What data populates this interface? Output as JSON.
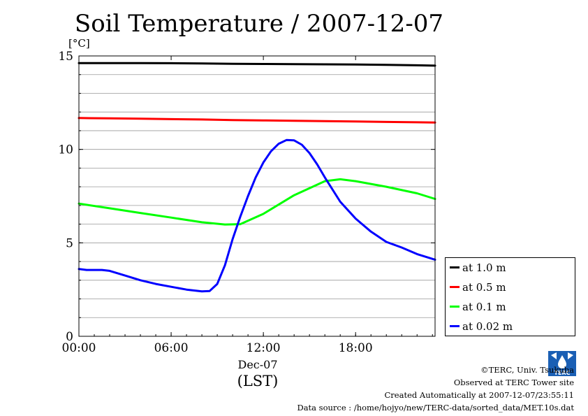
{
  "title": "Soil Temperature / 2007-12-07",
  "colors": {
    "d1_0": "#000000",
    "d0_5": "#ff0000",
    "d0_1": "#00ff00",
    "d0_02": "#0000ff"
  },
  "legend": [
    {
      "label": "at 1.0 m",
      "color": "#000000"
    },
    {
      "label": "at 0.5 m",
      "color": "#ff0000"
    },
    {
      "label": "at 0.1 m",
      "color": "#00ff00"
    },
    {
      "label": "at 0.02 m",
      "color": "#0000ff"
    }
  ],
  "credits": {
    "copyright": "©TERC, Univ. Tsukuba",
    "observed": "Observed at TERC Tower site",
    "created": "Created Automatically at 2007-12-07/23:55:11",
    "source": "Data source : /home/hojyo/new/TERC-data/sorted_data/MET.10s.dat"
  },
  "logo_text": "TERC",
  "chart_data": {
    "type": "line",
    "title": "Soil Temperature / 2007-12-07",
    "ylabel": "[°C]",
    "xlabel": "(LST)",
    "x_date_label": "Dec-07",
    "xlim": [
      0,
      23.17
    ],
    "ylim": [
      0,
      15
    ],
    "x_ticks": [
      0,
      6,
      12,
      18
    ],
    "x_tick_labels": [
      "00:00",
      "06:00",
      "12:00",
      "18:00"
    ],
    "y_ticks": [
      0,
      5,
      10,
      15
    ],
    "y_tick_labels": [
      "0",
      "5",
      "10",
      "15"
    ],
    "grid": true,
    "legend_position": "right-bottom, outside plot",
    "series": [
      {
        "name": "at 1.0 m",
        "color": "#000000",
        "x": [
          0,
          2,
          4,
          6,
          8,
          10,
          12,
          14,
          16,
          18,
          20,
          22,
          23.17
        ],
        "y": [
          14.62,
          14.62,
          14.62,
          14.61,
          14.6,
          14.58,
          14.57,
          14.56,
          14.55,
          14.54,
          14.52,
          14.5,
          14.48
        ]
      },
      {
        "name": "at 0.5 m",
        "color": "#ff0000",
        "x": [
          0,
          2,
          4,
          6,
          8,
          10,
          12,
          14,
          16,
          18,
          20,
          22,
          23.17
        ],
        "y": [
          11.68,
          11.66,
          11.64,
          11.62,
          11.6,
          11.57,
          11.55,
          11.53,
          11.51,
          11.49,
          11.47,
          11.45,
          11.44
        ]
      },
      {
        "name": "at 0.1 m",
        "color": "#00ff00",
        "x": [
          0,
          2,
          4,
          6,
          8,
          9.5,
          10.5,
          12,
          14,
          16,
          17,
          18,
          20,
          22,
          23.17
        ],
        "y": [
          7.1,
          6.85,
          6.6,
          6.35,
          6.1,
          5.98,
          6.0,
          6.55,
          7.55,
          8.3,
          8.4,
          8.3,
          8.0,
          7.65,
          7.35
        ]
      },
      {
        "name": "at 0.02 m",
        "color": "#0000ff",
        "x": [
          0,
          0.5,
          1,
          1.5,
          2,
          3,
          4,
          5,
          6,
          7,
          8,
          8.5,
          9,
          9.5,
          10,
          10.5,
          11,
          11.5,
          12,
          12.5,
          13,
          13.5,
          14,
          14.5,
          15,
          15.5,
          16,
          17,
          18,
          19,
          20,
          21,
          22,
          23.17
        ],
        "y": [
          3.6,
          3.55,
          3.55,
          3.55,
          3.5,
          3.25,
          3.0,
          2.8,
          2.65,
          2.5,
          2.4,
          2.42,
          2.8,
          3.8,
          5.2,
          6.4,
          7.5,
          8.5,
          9.3,
          9.9,
          10.3,
          10.5,
          10.48,
          10.25,
          9.8,
          9.2,
          8.5,
          7.2,
          6.3,
          5.6,
          5.05,
          4.75,
          4.4,
          4.1
        ]
      }
    ]
  }
}
